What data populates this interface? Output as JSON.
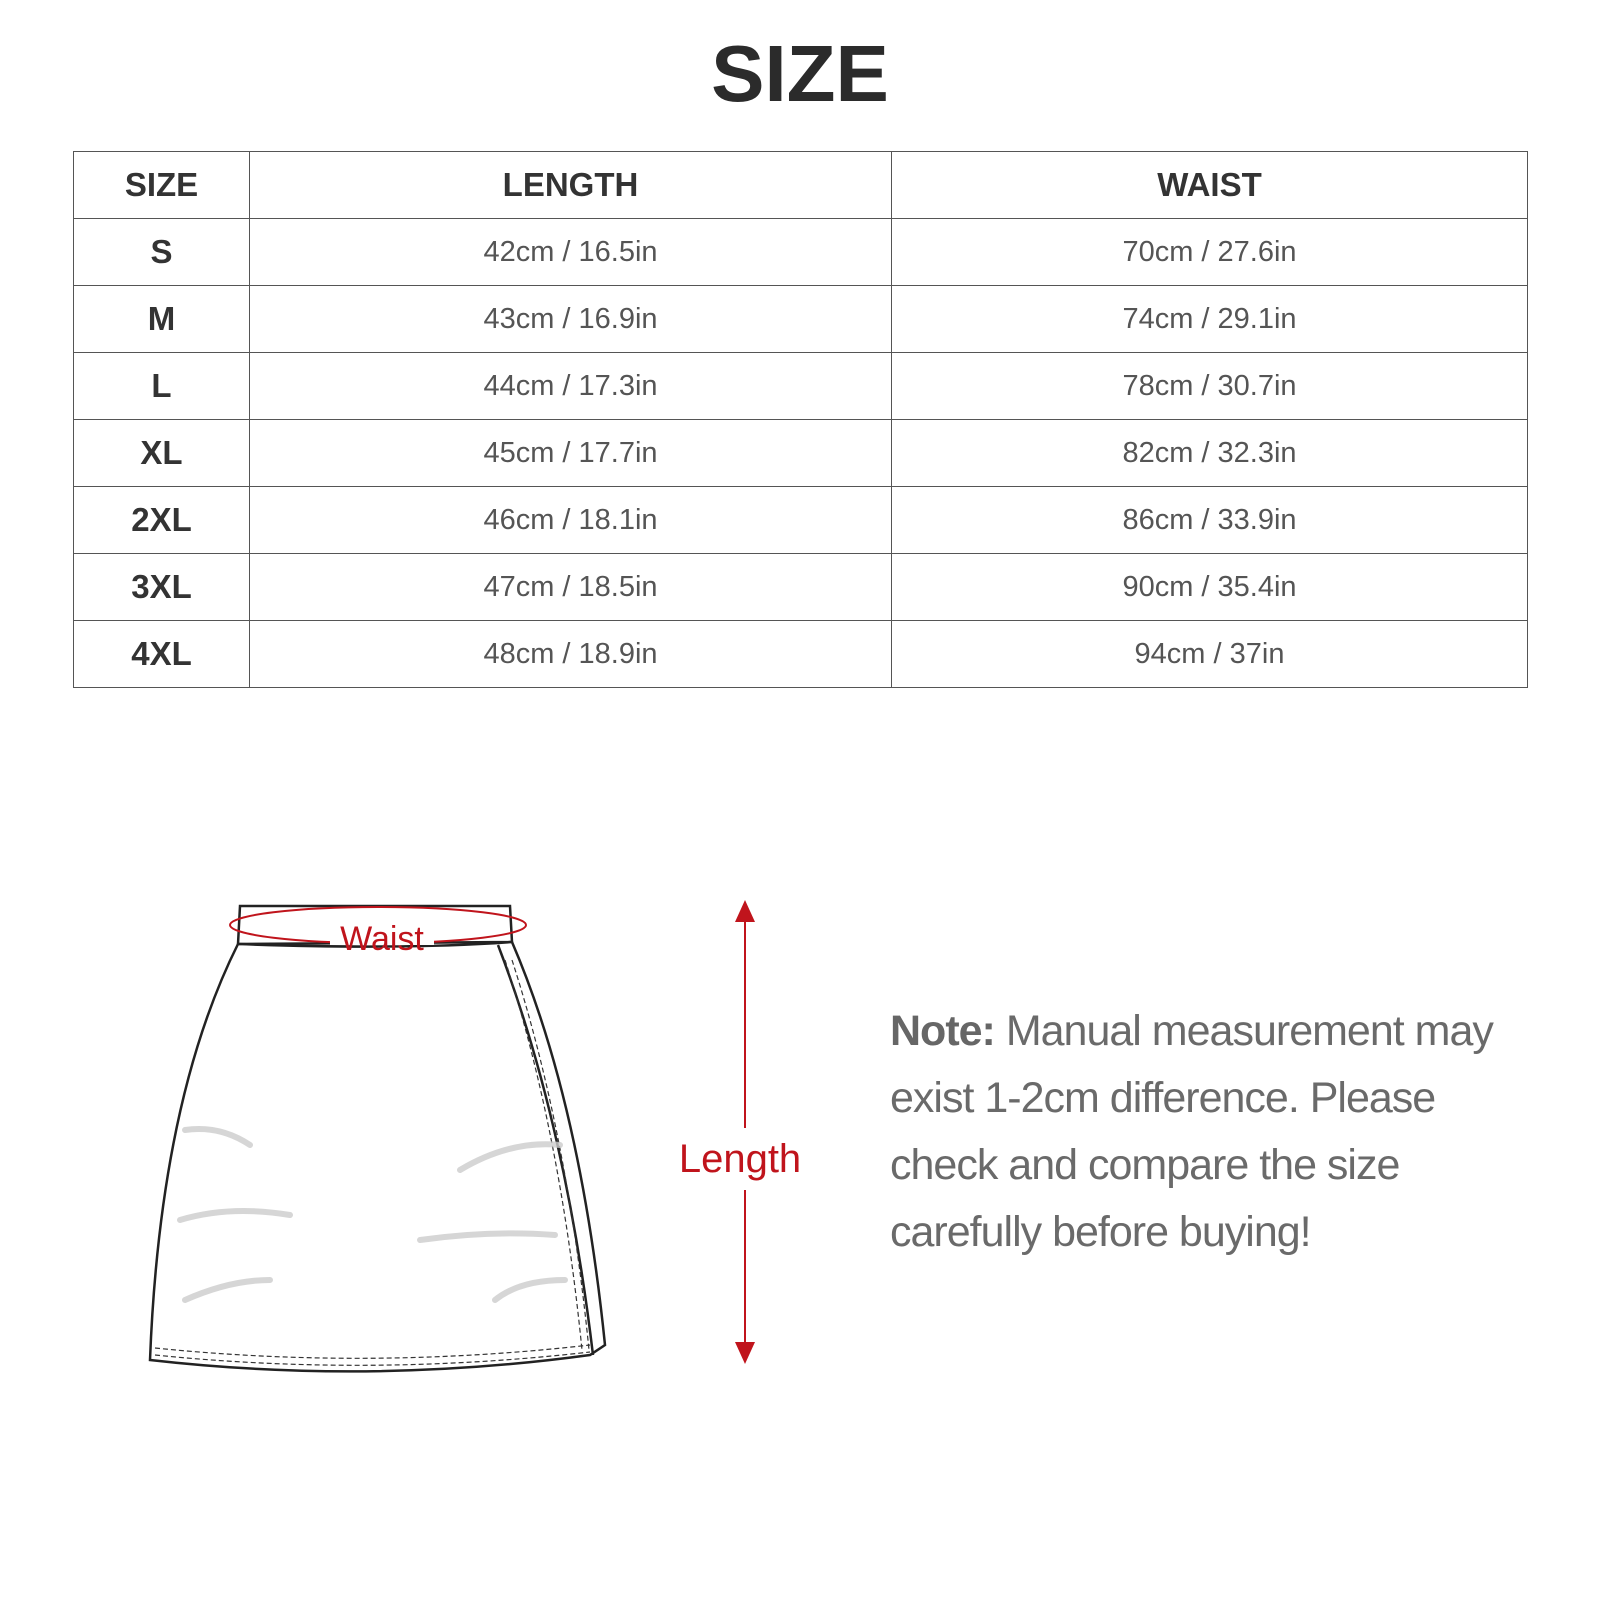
{
  "title": "SIZE",
  "table": {
    "header": [
      "SIZE",
      "LENGTH",
      "WAIST"
    ],
    "rows": [
      [
        "S",
        "42cm / 16.5in",
        "70cm / 27.6in"
      ],
      [
        "M",
        "43cm / 16.9in",
        "74cm / 29.1in"
      ],
      [
        "L",
        "44cm / 17.3in",
        "78cm / 30.7in"
      ],
      [
        "XL",
        "45cm / 17.7in",
        "82cm / 32.3in"
      ],
      [
        "2XL",
        "46cm / 18.1in",
        "86cm / 33.9in"
      ],
      [
        "3XL",
        "47cm / 18.5in",
        "90cm / 35.4in"
      ],
      [
        "4XL",
        "48cm / 18.9in",
        "94cm / 37in"
      ]
    ]
  },
  "diagram": {
    "waist_label": "Waist",
    "length_label": "Length"
  },
  "note": {
    "label": "Note:",
    "text": "Manual measurement may exist 1-2cm difference. Please check and compare the size carefully before buying!"
  }
}
